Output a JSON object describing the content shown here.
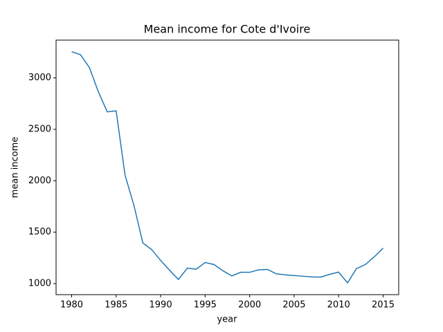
{
  "chart_data": {
    "type": "line",
    "title": "Mean income for Cote d'Ivoire",
    "x_label": "year",
    "y_label": "mean income",
    "x": [
      1980,
      1981,
      1982,
      1983,
      1984,
      1985,
      1986,
      1987,
      1988,
      1989,
      1990,
      1991,
      1992,
      1993,
      1994,
      1995,
      1996,
      1997,
      1998,
      1999,
      2000,
      2001,
      2002,
      2003,
      2004,
      2005,
      2006,
      2007,
      2008,
      2009,
      2010,
      2011,
      2012,
      2013,
      2014,
      2015
    ],
    "series": [
      {
        "color": "#1f77b4",
        "values": [
          3255,
          3225,
          3100,
          2865,
          2670,
          2680,
          2055,
          1760,
          1395,
          1330,
          1225,
          1130,
          1040,
          1150,
          1140,
          1205,
          1185,
          1125,
          1075,
          1110,
          1110,
          1134,
          1138,
          1095,
          1085,
          1078,
          1072,
          1065,
          1063,
          1090,
          1112,
          1007,
          1145,
          1185,
          1260,
          1345
        ]
      }
    ],
    "xlim": [
      1978.25,
      2016.75
    ],
    "xticks": [
      1980,
      1985,
      1990,
      1995,
      2000,
      2005,
      2010,
      2015
    ],
    "ylim": [
      892.5,
      3367.5
    ],
    "yticks": [
      1000,
      1500,
      2000,
      2500,
      3000
    ]
  }
}
